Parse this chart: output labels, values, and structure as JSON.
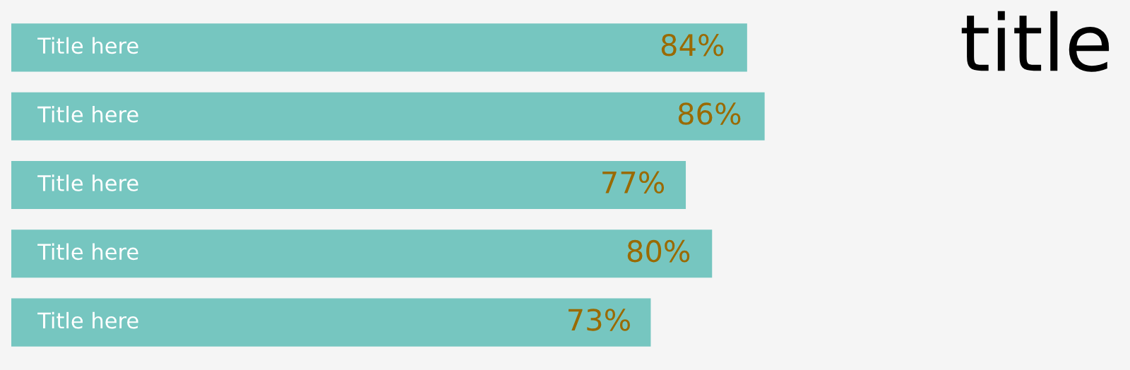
{
  "chart_data": {
    "type": "bar",
    "orientation": "horizontal",
    "title": "title",
    "categories": [
      "Title here",
      "Title here",
      "Title here",
      "Title here",
      "Title here"
    ],
    "values": [
      84,
      86,
      77,
      80,
      73
    ],
    "value_labels": [
      "84%",
      "86%",
      "77%",
      "80%",
      "73%"
    ],
    "color": "#76c6c0"
  }
}
